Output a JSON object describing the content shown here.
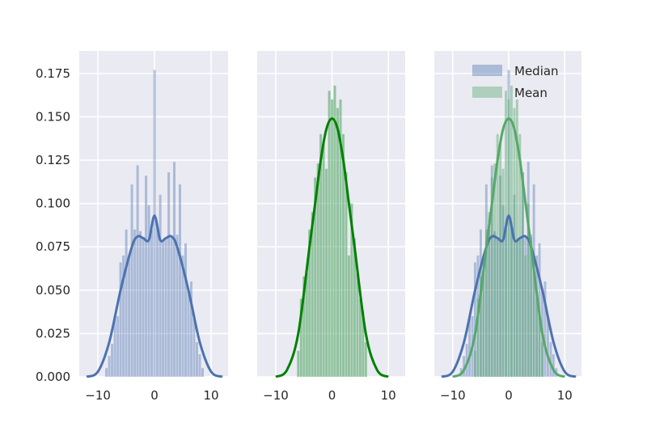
{
  "chart_data": [
    {
      "type": "bar",
      "panel": 1,
      "subtype": "histogram+kde",
      "title": "",
      "xlabel": "",
      "ylabel": "",
      "xlim": [
        -13.3,
        13
      ],
      "ylim": [
        0,
        0.188
      ],
      "xticks": [
        -10,
        0,
        10
      ],
      "yticks": [
        0.0,
        0.025,
        0.05,
        0.075,
        0.1,
        0.125,
        0.15,
        0.175
      ],
      "grid": true,
      "series": [
        {
          "name": "Median",
          "color": "#4c72b0",
          "hist_bins": [
            -8.5,
            -8,
            -7.5,
            -7,
            -6.5,
            -6,
            -5.5,
            -5,
            -4.5,
            -4,
            -3.5,
            -3,
            -2.5,
            -2,
            -1.5,
            -1,
            -0.5,
            0,
            0.5,
            1,
            1.5,
            2,
            2.5,
            3,
            3.5,
            4,
            4.5,
            5,
            5.5,
            6,
            6.5,
            7,
            7.5,
            8,
            8.5
          ],
          "hist_values": [
            0.005,
            0.012,
            0.019,
            0.034,
            0.035,
            0.066,
            0.07,
            0.085,
            0.07,
            0.111,
            0.085,
            0.122,
            0.084,
            0.08,
            0.116,
            0.099,
            0.085,
            0.177,
            0.086,
            0.105,
            0.078,
            0.08,
            0.118,
            0.08,
            0.124,
            0.082,
            0.111,
            0.07,
            0.077,
            0.05,
            0.055,
            0.034,
            0.02,
            0.013,
            0.005
          ],
          "kde_x": [
            -12,
            -10,
            -8,
            -6,
            -4,
            -3,
            -2,
            -1,
            0,
            1,
            2,
            3,
            4,
            6,
            8,
            10,
            12
          ],
          "kde_y": [
            0.0,
            0.003,
            0.02,
            0.05,
            0.075,
            0.081,
            0.08,
            0.079,
            0.093,
            0.079,
            0.08,
            0.081,
            0.075,
            0.05,
            0.02,
            0.003,
            0.0
          ]
        }
      ]
    },
    {
      "type": "bar",
      "panel": 2,
      "subtype": "histogram+kde",
      "xlim": [
        -13.3,
        13
      ],
      "ylim": [
        0,
        0.188
      ],
      "xticks": [
        -10,
        0,
        10
      ],
      "grid": true,
      "series": [
        {
          "name": "Mean",
          "color": "#008000",
          "hist_color": "#55a868",
          "hist_bins": [
            -6,
            -5.5,
            -5,
            -4.5,
            -4,
            -3.5,
            -3,
            -2.5,
            -2,
            -1.5,
            -1,
            -0.5,
            0,
            0.5,
            1,
            1.5,
            2,
            2.5,
            3,
            3.5,
            4,
            4.5,
            5,
            5.5,
            6
          ],
          "hist_values": [
            0.015,
            0.045,
            0.058,
            0.06,
            0.085,
            0.095,
            0.115,
            0.123,
            0.14,
            0.135,
            0.12,
            0.165,
            0.16,
            0.168,
            0.155,
            0.16,
            0.14,
            0.118,
            0.07,
            0.1,
            0.08,
            0.06,
            0.045,
            0.038,
            0.02
          ],
          "kde_x": [
            -10,
            -8,
            -6,
            -4,
            -3,
            -2,
            -1,
            0,
            1,
            2,
            3,
            4,
            6,
            8,
            10
          ],
          "kde_y": [
            0.0,
            0.004,
            0.025,
            0.075,
            0.1,
            0.125,
            0.143,
            0.149,
            0.143,
            0.125,
            0.1,
            0.075,
            0.025,
            0.004,
            0.0
          ]
        }
      ]
    },
    {
      "type": "bar",
      "panel": 3,
      "subtype": "histogram+kde overlay",
      "xlim": [
        -13.3,
        13
      ],
      "ylim": [
        0,
        0.188
      ],
      "xticks": [
        -10,
        0,
        10
      ],
      "grid": true,
      "legend": {
        "position": "upper right",
        "entries": [
          "Median",
          "Mean"
        ]
      },
      "series": [
        {
          "name": "Median",
          "color": "#4c72b0",
          "ref": "panel 1"
        },
        {
          "name": "Mean",
          "color": "#55a868",
          "ref": "panel 2"
        }
      ]
    }
  ],
  "axes": {
    "y_tick_labels": [
      "0.000",
      "0.025",
      "0.050",
      "0.075",
      "0.100",
      "0.125",
      "0.150",
      "0.175"
    ],
    "x_tick_labels": [
      "−10",
      "0",
      "10"
    ]
  },
  "legend": {
    "median_label": "Median",
    "mean_label": "Mean"
  },
  "colors": {
    "background": "#eaeaf2",
    "grid": "#ffffff",
    "median": "#4c72b0",
    "mean_kde_panel2": "#008000",
    "mean": "#55a868"
  }
}
